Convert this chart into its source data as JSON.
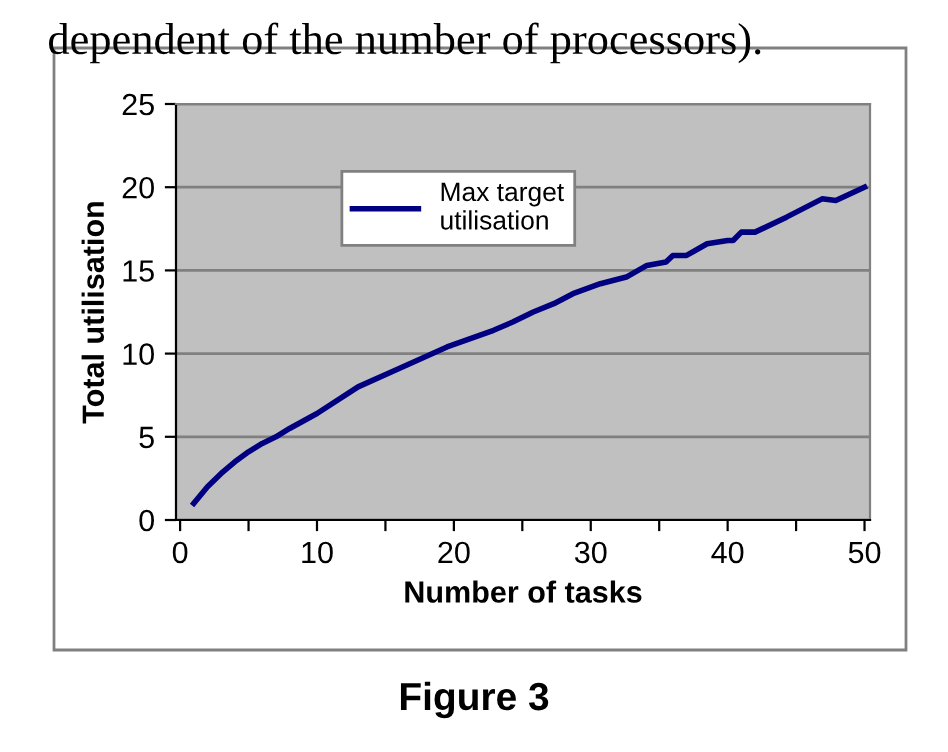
{
  "chart_data": {
    "type": "line",
    "xlabel": "Number of tasks",
    "ylabel": "Total utilisation",
    "annotations": [
      "dependent of the number of processors).",
      "Figure 3"
    ],
    "series": [
      {
        "name": "Max target\nutilisation",
        "color": "#000080",
        "x": [
          1,
          2,
          3,
          4,
          5,
          6,
          7,
          8,
          10,
          13,
          16,
          19.5,
          22.9,
          24.3,
          25.8,
          27.3,
          28.7,
          30.7,
          32.6,
          34.1,
          35.5,
          36,
          37,
          38.5,
          40,
          40.4,
          41,
          42,
          44.3,
          46.9,
          47.9,
          50
        ],
        "values": [
          1.0,
          2.0,
          2.8,
          3.5,
          4.1,
          4.6,
          5.0,
          5.5,
          6.4,
          8.0,
          9.1,
          10.4,
          11.4,
          11.9,
          12.5,
          13.0,
          13.6,
          14.2,
          14.6,
          15.3,
          15.5,
          15.9,
          15.9,
          16.6,
          16.8,
          16.8,
          17.3,
          17.3,
          18.2,
          19.3,
          19.2,
          20.0
        ]
      }
    ],
    "xlim": [
      -0.3,
      50.4
    ],
    "ylim": [
      0,
      25
    ],
    "xticks": [
      0,
      {
        "value": 5,
        "label": null
      },
      10,
      {
        "value": 15,
        "label": null
      },
      20,
      {
        "value": 25,
        "label": null
      },
      30,
      {
        "value": 35,
        "label": null
      },
      40,
      {
        "value": 45,
        "label": null
      },
      50
    ],
    "yticks": [
      0,
      5,
      10,
      15,
      20,
      25
    ],
    "grid": "y",
    "legend": "top left",
    "marker": "none",
    "line_style": "solid"
  }
}
